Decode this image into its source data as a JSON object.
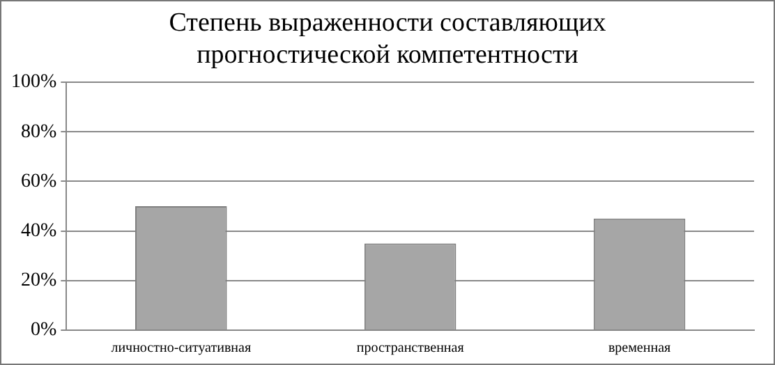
{
  "chart_data": {
    "type": "bar",
    "title": "Степень выраженности составляющих прогностической компетентности",
    "categories": [
      "личностно-ситуативная",
      "пространственная",
      "временная"
    ],
    "values": [
      50,
      35,
      45
    ],
    "color": "#a6a6a6",
    "ylim": [
      0,
      100
    ],
    "yticks": [
      {
        "value": 0,
        "label": "0%"
      },
      {
        "value": 20,
        "label": "20%"
      },
      {
        "value": 40,
        "label": "40%"
      },
      {
        "value": 60,
        "label": "60%"
      },
      {
        "value": 80,
        "label": "80%"
      },
      {
        "value": 100,
        "label": "100%"
      }
    ],
    "grid": "y"
  }
}
